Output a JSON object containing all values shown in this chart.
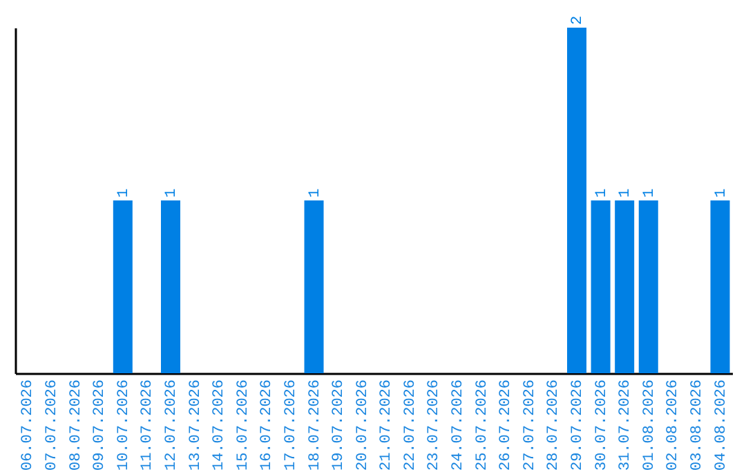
{
  "chart_data": {
    "type": "bar",
    "categories": [
      "06.07.2026",
      "07.07.2026",
      "08.07.2026",
      "09.07.2026",
      "10.07.2026",
      "11.07.2026",
      "12.07.2026",
      "13.07.2026",
      "14.07.2026",
      "15.07.2026",
      "16.07.2026",
      "17.07.2026",
      "18.07.2026",
      "19.07.2026",
      "20.07.2026",
      "21.07.2026",
      "22.07.2026",
      "23.07.2026",
      "24.07.2026",
      "25.07.2026",
      "26.07.2026",
      "27.07.2026",
      "28.07.2026",
      "29.07.2026",
      "30.07.2026",
      "31.07.2026",
      "01.08.2026",
      "02.08.2026",
      "03.08.2026",
      "04.08.2026"
    ],
    "values": [
      0,
      0,
      0,
      0,
      1,
      0,
      1,
      0,
      0,
      0,
      0,
      0,
      1,
      0,
      0,
      0,
      0,
      0,
      0,
      0,
      0,
      0,
      0,
      2,
      1,
      1,
      1,
      0,
      0,
      1
    ],
    "value_labels": [
      null,
      null,
      null,
      null,
      "1",
      null,
      "1",
      null,
      null,
      null,
      null,
      null,
      "1",
      null,
      null,
      null,
      null,
      null,
      null,
      null,
      null,
      null,
      null,
      "2",
      "1",
      "1",
      "1",
      null,
      null,
      "1"
    ],
    "color": "#0080e4",
    "grid": false
  }
}
